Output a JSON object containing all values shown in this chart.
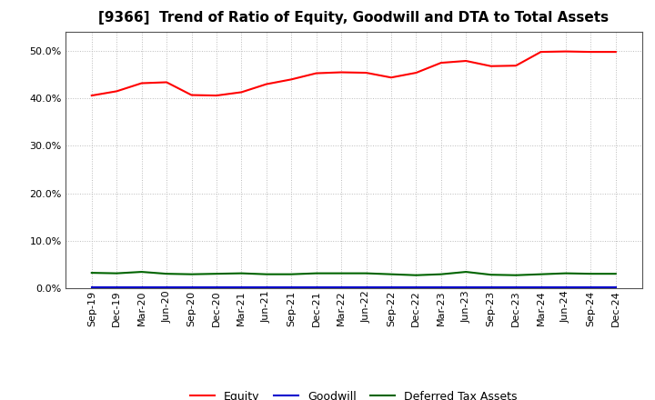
{
  "title": "[9366]  Trend of Ratio of Equity, Goodwill and DTA to Total Assets",
  "x_labels": [
    "Sep-19",
    "Dec-19",
    "Mar-20",
    "Jun-20",
    "Sep-20",
    "Dec-20",
    "Mar-21",
    "Jun-21",
    "Sep-21",
    "Dec-21",
    "Mar-22",
    "Jun-22",
    "Sep-22",
    "Dec-22",
    "Mar-23",
    "Jun-23",
    "Sep-23",
    "Dec-23",
    "Mar-24",
    "Jun-24",
    "Sep-24",
    "Dec-24"
  ],
  "equity": [
    0.406,
    0.415,
    0.432,
    0.434,
    0.407,
    0.406,
    0.413,
    0.43,
    0.44,
    0.453,
    0.455,
    0.454,
    0.444,
    0.454,
    0.475,
    0.479,
    0.468,
    0.469,
    0.498,
    0.499,
    0.498,
    0.498
  ],
  "goodwill": [
    0.001,
    0.001,
    0.001,
    0.001,
    0.001,
    0.001,
    0.001,
    0.001,
    0.001,
    0.001,
    0.001,
    0.001,
    0.001,
    0.001,
    0.001,
    0.001,
    0.001,
    0.001,
    0.001,
    0.001,
    0.001,
    0.001
  ],
  "dta": [
    0.032,
    0.031,
    0.034,
    0.03,
    0.029,
    0.03,
    0.031,
    0.029,
    0.029,
    0.031,
    0.031,
    0.031,
    0.029,
    0.027,
    0.029,
    0.034,
    0.028,
    0.027,
    0.029,
    0.031,
    0.03,
    0.03
  ],
  "equity_color": "#FF0000",
  "goodwill_color": "#0000CD",
  "dta_color": "#006400",
  "ylim": [
    0.0,
    0.54
  ],
  "yticks": [
    0.0,
    0.1,
    0.2,
    0.3,
    0.4,
    0.5
  ],
  "background_color": "#FFFFFF",
  "plot_bg_color": "#FFFFFF",
  "grid_color": "#BBBBBB",
  "title_fontsize": 11,
  "tick_fontsize": 8,
  "legend_labels": [
    "Equity",
    "Goodwill",
    "Deferred Tax Assets"
  ]
}
